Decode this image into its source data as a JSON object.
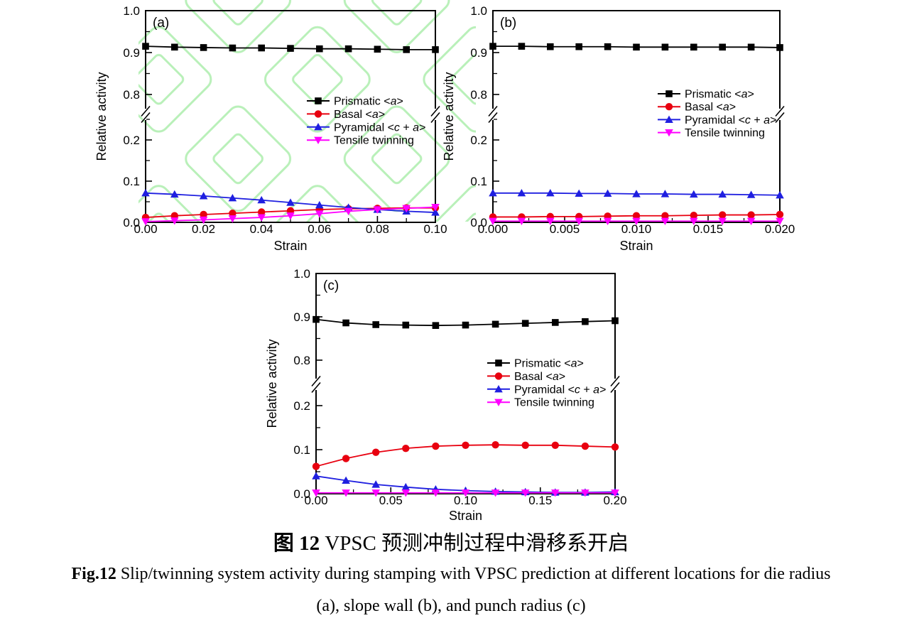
{
  "figure": {
    "caption_zh_bold": "图 12",
    "caption_zh_rest": " VPSC 预测冲制过程中滑移系开启",
    "caption_en_bold": "Fig.12",
    "caption_en_rest": " Slip/twinning system activity during stamping with VPSC prediction at different locations for die radius",
    "caption_en_line2": "(a), slope wall (b), and punch radius (c)"
  },
  "watermark": {
    "color": "#b9f0b9",
    "shape": "nested-diamond-outlines"
  },
  "legend_entries": [
    {
      "name": "prismatic",
      "color": "#000000",
      "marker": "square",
      "label": "Prismatic <a>",
      "segments": [
        [
          "Prismatic <",
          false
        ],
        [
          "a",
          true
        ],
        [
          ">",
          false
        ]
      ]
    },
    {
      "name": "basal",
      "color": "#e8000f",
      "marker": "circle",
      "label": "Basal <a>",
      "segments": [
        [
          "Basal <",
          false
        ],
        [
          "a",
          true
        ],
        [
          ">",
          false
        ]
      ]
    },
    {
      "name": "pyramidal",
      "color": "#1f1fe0",
      "marker": "triangle-up",
      "label": "Pyramidal <c + a>",
      "segments": [
        [
          "Pyramidal <",
          false
        ],
        [
          "c",
          true
        ],
        [
          " + ",
          false
        ],
        [
          "a",
          true
        ],
        [
          ">",
          false
        ]
      ]
    },
    {
      "name": "tensile",
      "color": "#ff00ff",
      "marker": "triangle-down",
      "label": "Tensile twinning",
      "segments": [
        [
          "Tensile twinning",
          false
        ]
      ]
    }
  ],
  "chart_data": [
    {
      "id": "a",
      "type": "line",
      "panel_label": "(a)",
      "xlabel": "Strain",
      "ylabel": "Relative activity",
      "xlim": [
        0,
        0.1
      ],
      "ylim": [
        0,
        1.0
      ],
      "y_axis_break": [
        0.25,
        0.765
      ],
      "xtick_values": [
        0,
        0.02,
        0.04,
        0.06,
        0.08,
        0.1
      ],
      "xtick_labels": [
        "0.00",
        "0.02",
        "0.04",
        "0.06",
        "0.08",
        "0.10"
      ],
      "xminor_values": [
        0.01,
        0.03,
        0.05,
        0.07,
        0.09
      ],
      "ytick_values": [
        0,
        0.1,
        0.2,
        0.8,
        0.9,
        1.0
      ],
      "ytick_labels": [
        "0.0",
        "0.1",
        "0.2",
        "0.8",
        "0.9",
        "1.0"
      ],
      "yminor_values": [
        0.05,
        0.15,
        0.25,
        0.85,
        0.95
      ],
      "x": [
        0,
        0.01,
        0.02,
        0.03,
        0.04,
        0.05,
        0.06,
        0.07,
        0.08,
        0.09,
        0.1
      ],
      "series": [
        {
          "name": "Prismatic <a>",
          "values": [
            0.915,
            0.913,
            0.912,
            0.911,
            0.911,
            0.91,
            0.909,
            0.909,
            0.908,
            0.907,
            0.907
          ]
        },
        {
          "name": "Basal <a>",
          "values": [
            0.012,
            0.016,
            0.019,
            0.022,
            0.025,
            0.028,
            0.031,
            0.033,
            0.034,
            0.035,
            0.035
          ]
        },
        {
          "name": "Pyramidal <c + a>",
          "values": [
            0.071,
            0.068,
            0.064,
            0.059,
            0.054,
            0.048,
            0.042,
            0.036,
            0.031,
            0.027,
            0.024
          ]
        },
        {
          "name": "Tensile twinning",
          "values": [
            0.002,
            0.004,
            0.006,
            0.009,
            0.012,
            0.016,
            0.021,
            0.027,
            0.031,
            0.034,
            0.037
          ]
        }
      ]
    },
    {
      "id": "b",
      "type": "line",
      "panel_label": "(b)",
      "xlabel": "Strain",
      "ylabel": "Relative activity",
      "xlim": [
        0,
        0.02
      ],
      "ylim": [
        0,
        1.0
      ],
      "y_axis_break": [
        0.25,
        0.765
      ],
      "xtick_values": [
        0,
        0.005,
        0.01,
        0.015,
        0.02
      ],
      "xtick_labels": [
        "0.000",
        "0.005",
        "0.010",
        "0.015",
        "0.020"
      ],
      "xminor_values": [
        0.0025,
        0.0075,
        0.0125,
        0.0175
      ],
      "ytick_values": [
        0,
        0.1,
        0.2,
        0.8,
        0.9,
        1.0
      ],
      "ytick_labels": [
        "0.0",
        "0.1",
        "0.2",
        "0.8",
        "0.9",
        "1.0"
      ],
      "yminor_values": [
        0.05,
        0.15,
        0.25,
        0.85,
        0.95
      ],
      "x": [
        0,
        0.002,
        0.004,
        0.006,
        0.008,
        0.01,
        0.012,
        0.014,
        0.016,
        0.018,
        0.02
      ],
      "series": [
        {
          "name": "Prismatic <a>",
          "values": [
            0.915,
            0.915,
            0.914,
            0.914,
            0.914,
            0.913,
            0.913,
            0.913,
            0.913,
            0.913,
            0.912
          ]
        },
        {
          "name": "Basal <a>",
          "values": [
            0.013,
            0.013,
            0.014,
            0.014,
            0.015,
            0.016,
            0.016,
            0.017,
            0.018,
            0.018,
            0.019
          ]
        },
        {
          "name": "Pyramidal <c + a>",
          "values": [
            0.071,
            0.071,
            0.071,
            0.07,
            0.07,
            0.069,
            0.069,
            0.068,
            0.068,
            0.067,
            0.066
          ]
        },
        {
          "name": "Tensile twinning",
          "values": [
            0.003,
            0.003,
            0.003,
            0.003,
            0.003,
            0.003,
            0.003,
            0.003,
            0.003,
            0.003,
            0.003
          ]
        }
      ]
    },
    {
      "id": "c",
      "type": "line",
      "panel_label": "(c)",
      "xlabel": "Strain",
      "ylabel": "Relative activity",
      "xlim": [
        0,
        0.2
      ],
      "ylim": [
        0,
        1.0
      ],
      "y_axis_break": [
        0.25,
        0.75
      ],
      "xtick_values": [
        0,
        0.05,
        0.1,
        0.15,
        0.2
      ],
      "xtick_labels": [
        "0.00",
        "0.05",
        "0.10",
        "0.15",
        "0.20"
      ],
      "xminor_values": [
        0.025,
        0.075,
        0.125,
        0.175
      ],
      "ytick_values": [
        0,
        0.1,
        0.2,
        0.8,
        0.9,
        1.0
      ],
      "ytick_labels": [
        "0.0",
        "0.1",
        "0.2",
        "0.8",
        "0.9",
        "1.0"
      ],
      "yminor_values": [
        0.05,
        0.15,
        0.85,
        0.95
      ],
      "x": [
        0,
        0.02,
        0.04,
        0.06,
        0.08,
        0.1,
        0.12,
        0.14,
        0.16,
        0.18,
        0.2
      ],
      "series": [
        {
          "name": "Prismatic <a>",
          "values": [
            0.894,
            0.886,
            0.882,
            0.881,
            0.88,
            0.881,
            0.883,
            0.885,
            0.887,
            0.889,
            0.891
          ]
        },
        {
          "name": "Basal <a>",
          "values": [
            0.062,
            0.08,
            0.094,
            0.103,
            0.108,
            0.11,
            0.111,
            0.11,
            0.11,
            0.108,
            0.106
          ]
        },
        {
          "name": "Pyramidal <c + a>",
          "values": [
            0.04,
            0.03,
            0.021,
            0.015,
            0.01,
            0.007,
            0.005,
            0.004,
            0.003,
            0.003,
            0.004
          ]
        },
        {
          "name": "Tensile twinning",
          "values": [
            0.002,
            0.002,
            0.002,
            0.002,
            0.002,
            0.002,
            0.002,
            0.002,
            0.002,
            0.002,
            0.002
          ]
        }
      ]
    }
  ]
}
